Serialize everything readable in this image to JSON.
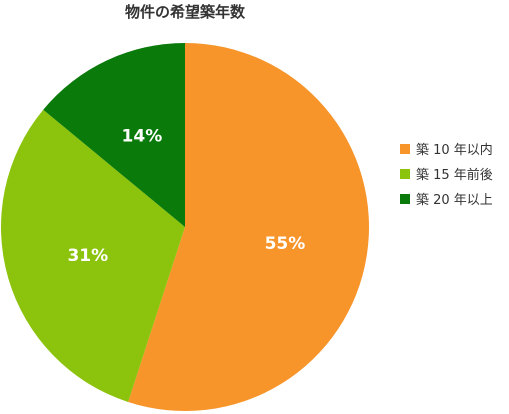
{
  "chart_data": {
    "type": "pie",
    "title": "物件の希望築年数",
    "categories": [
      "築 10 年以内",
      "築 15 年前後",
      "築 20 年以上"
    ],
    "values": [
      55,
      31,
      14
    ],
    "value_labels": [
      "55%",
      "31%",
      "14%"
    ],
    "colors": [
      "#f7942a",
      "#8cc30c",
      "#0a7a0a"
    ],
    "legend_position": "right"
  }
}
